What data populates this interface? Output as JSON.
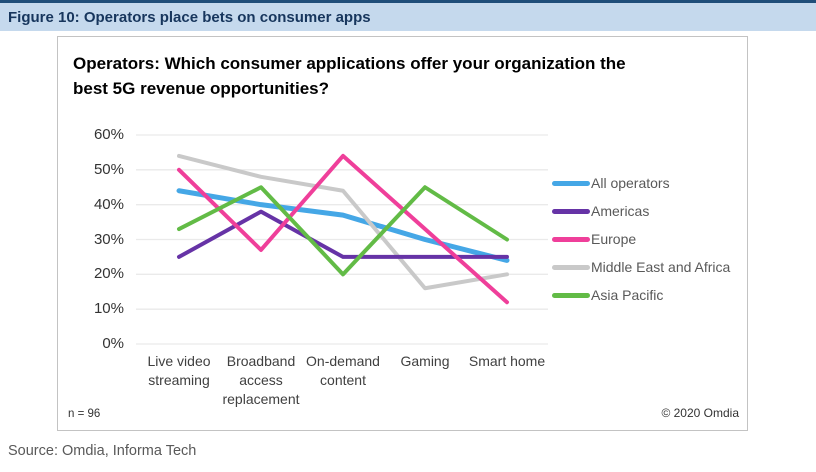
{
  "figure_header": {
    "label": "Figure 10: Operators place bets on consumer apps"
  },
  "chart": {
    "title": "Operators: Which consumer applications offer your organization the\nbest 5G revenue opportunities?",
    "footnote_left": "n = 96",
    "footnote_right": "© 2020 Omdia"
  },
  "source_line": "Source: Omdia, Informa Tech",
  "colors": {
    "header_bg": "#C5D9ED",
    "header_text": "#17365D",
    "header_top_bar": "#1F4E79",
    "panel_border": "#C3C3C3",
    "grid": "#EAEAEA",
    "axis_text": "#333333",
    "legend_text": "#595959"
  },
  "chart_data": {
    "type": "line",
    "categories": [
      "Live video\nstreaming",
      "Broadband\naccess\nreplacement",
      "On-demand\ncontent",
      "Gaming",
      "Smart home"
    ],
    "series": [
      {
        "name": "All operators",
        "color": "#45A7E6",
        "values": [
          44,
          40,
          37,
          30,
          24
        ]
      },
      {
        "name": "Americas",
        "color": "#6633A6",
        "values": [
          25,
          38,
          25,
          25,
          25
        ]
      },
      {
        "name": "Europe",
        "color": "#EF3F9A",
        "values": [
          50,
          27,
          54,
          33,
          12
        ]
      },
      {
        "name": "Middle East and Africa",
        "color": "#C9C9C9",
        "values": [
          54,
          48,
          44,
          16,
          20
        ]
      },
      {
        "name": "Asia Pacific",
        "color": "#62BB46",
        "values": [
          33,
          45,
          20,
          45,
          30
        ]
      }
    ],
    "ylim": [
      0,
      60
    ],
    "ytick_step": 10,
    "ytick_suffix": "%",
    "grid": true,
    "legend_position": "right",
    "draw_order": [
      0,
      3,
      1,
      2,
      4
    ]
  }
}
